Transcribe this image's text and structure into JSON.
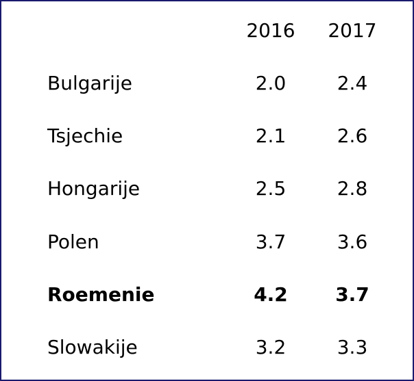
{
  "table": {
    "columns": [
      "2016",
      "2017"
    ],
    "rows": [
      {
        "label": "Bulgarije",
        "values": [
          "2.0",
          "2.4"
        ],
        "bold": false
      },
      {
        "label": "Tsjechie",
        "values": [
          "2.1",
          "2.6"
        ],
        "bold": false
      },
      {
        "label": "Hongarije",
        "values": [
          "2.5",
          "2.8"
        ],
        "bold": false
      },
      {
        "label": "Polen",
        "values": [
          "3.7",
          "3.6"
        ],
        "bold": false
      },
      {
        "label": "Roemenie",
        "values": [
          "4.2",
          "3.7"
        ],
        "bold": true
      },
      {
        "label": "Slowakije",
        "values": [
          "3.2",
          "3.3"
        ],
        "bold": false
      }
    ]
  }
}
